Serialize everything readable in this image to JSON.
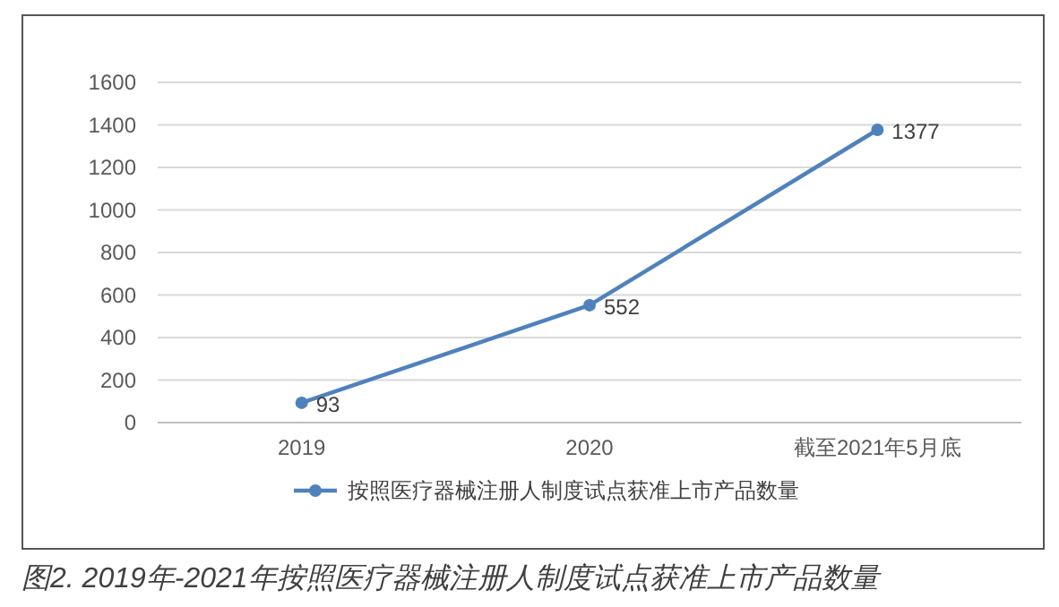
{
  "chart_data": {
    "type": "line",
    "categories": [
      "2019",
      "2020",
      "截至2021年5月底"
    ],
    "series": [
      {
        "name": "按照医疗器械注册人制度试点获准上市产品数量",
        "color": "#4f81bd",
        "values": [
          93,
          552,
          1377
        ]
      }
    ],
    "ylim": [
      0,
      1600
    ],
    "yticks": [
      0,
      200,
      400,
      600,
      800,
      1000,
      1200,
      1400,
      1600
    ],
    "grid": "y",
    "legend": "bottom",
    "marker": "circle",
    "line_style": "solid",
    "data_labels": true,
    "annotations": [
      "图2. 2019年-2021年按照医疗器械注册人制度试点获准上市产品数量"
    ]
  }
}
